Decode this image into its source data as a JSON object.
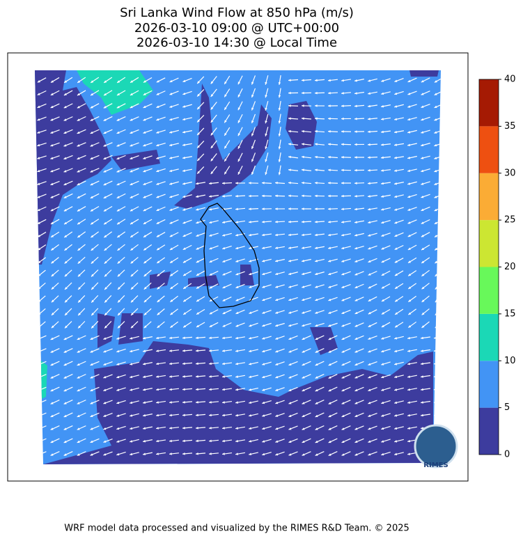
{
  "title": [
    "Sri Lanka Wind Flow at 850 hPa (m/s)",
    "2026-03-10 09:00 @ UTC+00:00",
    "2026-03-10 14:30 @ Local Time"
  ],
  "colorbar": {
    "ticks": [
      0,
      5,
      10,
      15,
      20,
      25,
      30,
      35,
      40
    ],
    "colors": [
      "#3d3c9e",
      "#4294f5",
      "#1bd8b6",
      "#68f85a",
      "#cce632",
      "#fbac35",
      "#ee5011",
      "#a51a03"
    ]
  },
  "logo": "RIMES",
  "footer": "WRF model data processed and visualized by the RIMES R&D Team. © 2025"
}
